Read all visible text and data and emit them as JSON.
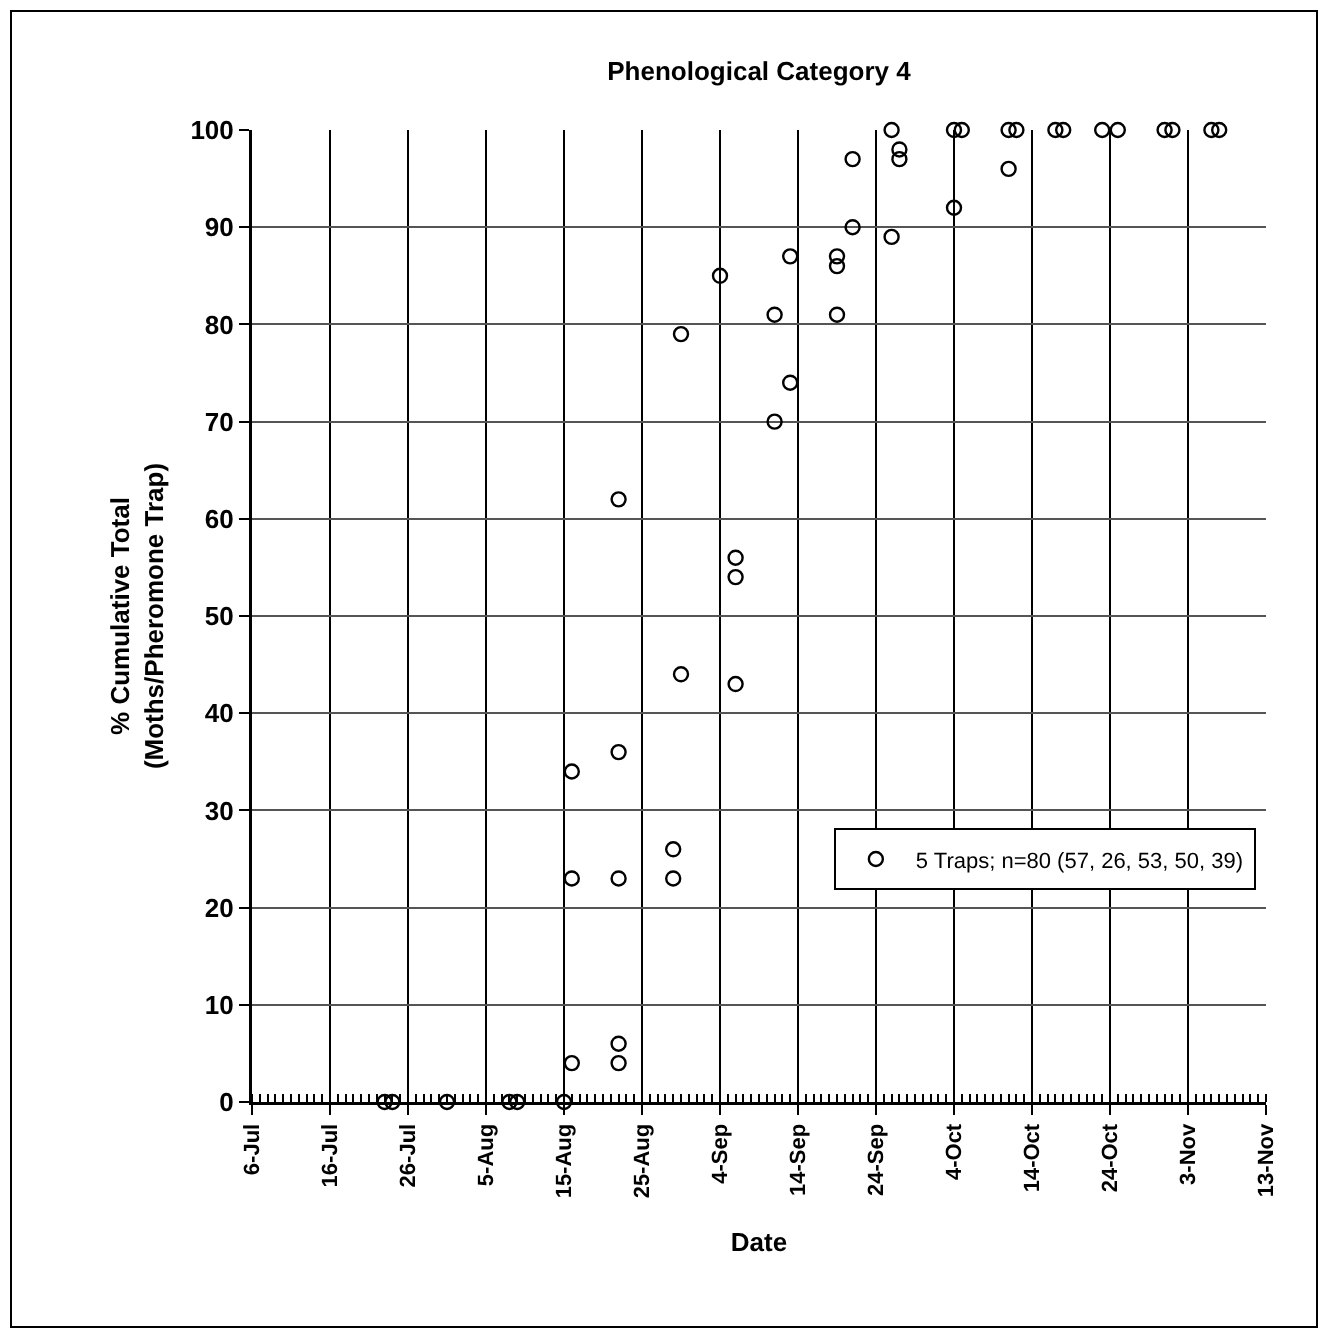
{
  "chart_data": {
    "type": "scatter",
    "title": "Phenological Category 4",
    "xlabel": "Date",
    "ylabel": "% Cumulative Total\n(Moths/Pheromone Trap)",
    "series": [
      {
        "name": "5 Traps; n=80 (57, 26, 53, 50, 39)",
        "color": "#000000",
        "x": [
          "--07-23",
          "--07-24",
          "--07-31",
          "--08-08",
          "--08-09",
          "--08-15",
          "--08-16",
          "--08-16",
          "--08-16",
          "--08-22",
          "--08-22",
          "--08-22",
          "--08-22",
          "--08-22",
          "--08-29",
          "--08-29",
          "--08-30",
          "--08-30",
          "--09-04",
          "--09-06",
          "--09-06",
          "--09-06",
          "--09-11",
          "--09-11",
          "--09-13",
          "--09-13",
          "--09-19",
          "--09-19",
          "--09-19",
          "--09-21",
          "--09-21",
          "--09-26",
          "--09-26",
          "--09-27",
          "--09-27",
          "--10-04",
          "--10-04",
          "--10-05",
          "--10-11",
          "--10-11",
          "--10-12",
          "--10-17",
          "--10-18",
          "--10-23",
          "--10-25",
          "--10-31",
          "--11-01",
          "--11-06",
          "--11-07"
        ],
        "values": [
          0,
          0,
          0,
          0,
          0,
          0,
          4,
          23,
          34,
          4,
          6,
          23,
          36,
          62,
          23,
          26,
          44,
          79,
          85,
          43,
          54,
          56,
          70,
          81,
          74,
          87,
          81,
          86,
          87,
          90,
          97,
          89,
          100,
          97,
          98,
          92,
          100,
          100,
          96,
          100,
          100,
          100,
          100,
          100,
          100,
          100,
          100,
          100,
          100
        ]
      }
    ],
    "xlim": [
      "--07-06",
      "--11-13"
    ],
    "xticks": [
      {
        "value": "--07-06",
        "label": "6-Jul"
      },
      {
        "value": "--07-16",
        "label": "16-Jul"
      },
      {
        "value": "--07-26",
        "label": "26-Jul"
      },
      {
        "value": "--08-05",
        "label": "5-Aug"
      },
      {
        "value": "--08-15",
        "label": "15-Aug"
      },
      {
        "value": "--08-25",
        "label": "25-Aug"
      },
      {
        "value": "--09-04",
        "label": "4-Sep"
      },
      {
        "value": "--09-14",
        "label": "14-Sep"
      },
      {
        "value": "--09-24",
        "label": "24-Sep"
      },
      {
        "value": "--10-04",
        "label": "4-Oct"
      },
      {
        "value": "--10-14",
        "label": "14-Oct"
      },
      {
        "value": "--10-24",
        "label": "24-Oct"
      },
      {
        "value": "--11-03",
        "label": "3-Nov"
      },
      {
        "value": "--11-13",
        "label": "13-Nov"
      }
    ],
    "ylim": [
      0,
      100
    ],
    "yticks": [
      0,
      10,
      20,
      30,
      40,
      50,
      60,
      70,
      80,
      90,
      100
    ],
    "grid": true,
    "legend": "bottom right",
    "marker": "circle"
  }
}
